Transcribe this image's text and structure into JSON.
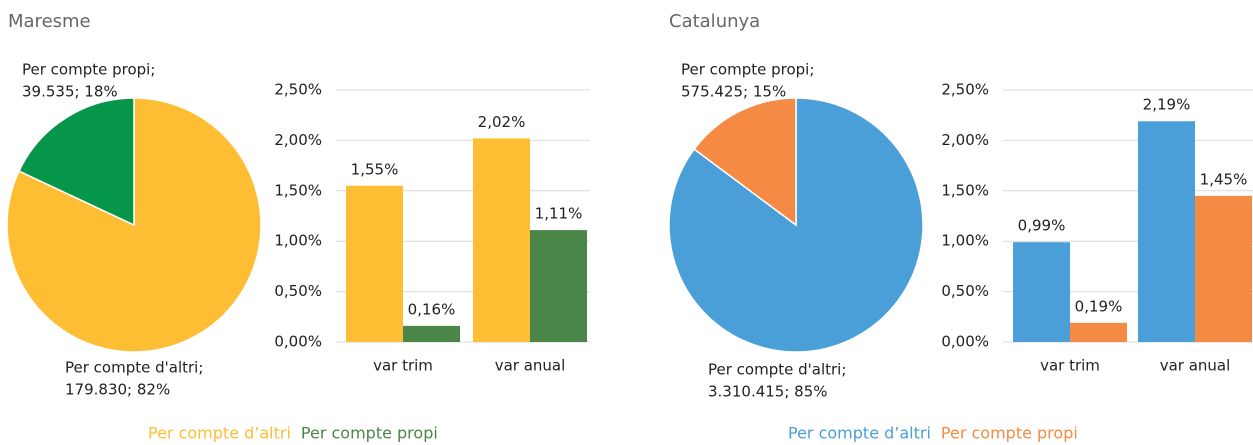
{
  "chart_data": [
    {
      "type": "pie",
      "title": "Maresme",
      "categories": [
        "Per compte d'altri;",
        "Per compte propi;"
      ],
      "values": [
        179830,
        39535
      ],
      "value_labels": [
        "179.830; 82%",
        "39.535; 18%"
      ],
      "colors": [
        "#fdbe33",
        "#05964a"
      ]
    },
    {
      "type": "bar",
      "categories": [
        "var trim",
        "var anual"
      ],
      "series": [
        {
          "name": "Per compte d’altri",
          "color": "#fdbe33",
          "values": [
            1.55,
            2.02
          ],
          "value_labels": [
            "1,55%",
            "2,02%"
          ]
        },
        {
          "name": "Per compte propi",
          "color": "#4a8648",
          "values": [
            0.16,
            1.11
          ],
          "value_labels": [
            "0,16%",
            "1,11%"
          ]
        }
      ],
      "ylim": [
        0,
        2.5
      ],
      "yticks": [
        {
          "value": 0,
          "label": "0,00%"
        },
        {
          "value": 0.5,
          "label": "0,50%"
        },
        {
          "value": 1,
          "label": "1,00%"
        },
        {
          "value": 1.5,
          "label": "1,50%"
        },
        {
          "value": 2,
          "label": "2,00%"
        },
        {
          "value": 2.5,
          "label": "2,50%"
        }
      ],
      "grid": true
    },
    {
      "type": "pie",
      "title": "Catalunya",
      "categories": [
        "Per compte d'altri;",
        "Per compte propi;"
      ],
      "values": [
        3310415,
        575425
      ],
      "value_labels": [
        "3.310.415; 85%",
        "575.425; 15%"
      ],
      "colors": [
        "#4a9fd8",
        "#f58a45"
      ]
    },
    {
      "type": "bar",
      "categories": [
        "var trim",
        "var anual"
      ],
      "series": [
        {
          "name": "Per compte d’altri",
          "color": "#4a9fd8",
          "values": [
            0.99,
            2.19
          ],
          "value_labels": [
            "0,99%",
            "2,19%"
          ]
        },
        {
          "name": "Per compte propi",
          "color": "#f58a45",
          "values": [
            0.19,
            1.45
          ],
          "value_labels": [
            "0,19%",
            "1,45%"
          ]
        }
      ],
      "ylim": [
        0,
        2.5
      ],
      "yticks": [
        {
          "value": 0,
          "label": "0,00%"
        },
        {
          "value": 0.5,
          "label": "0,50%"
        },
        {
          "value": 1,
          "label": "1,00%"
        },
        {
          "value": 1.5,
          "label": "1,50%"
        },
        {
          "value": 2,
          "label": "2,00%"
        },
        {
          "value": 2.5,
          "label": "2,50%"
        }
      ],
      "grid": true
    }
  ]
}
